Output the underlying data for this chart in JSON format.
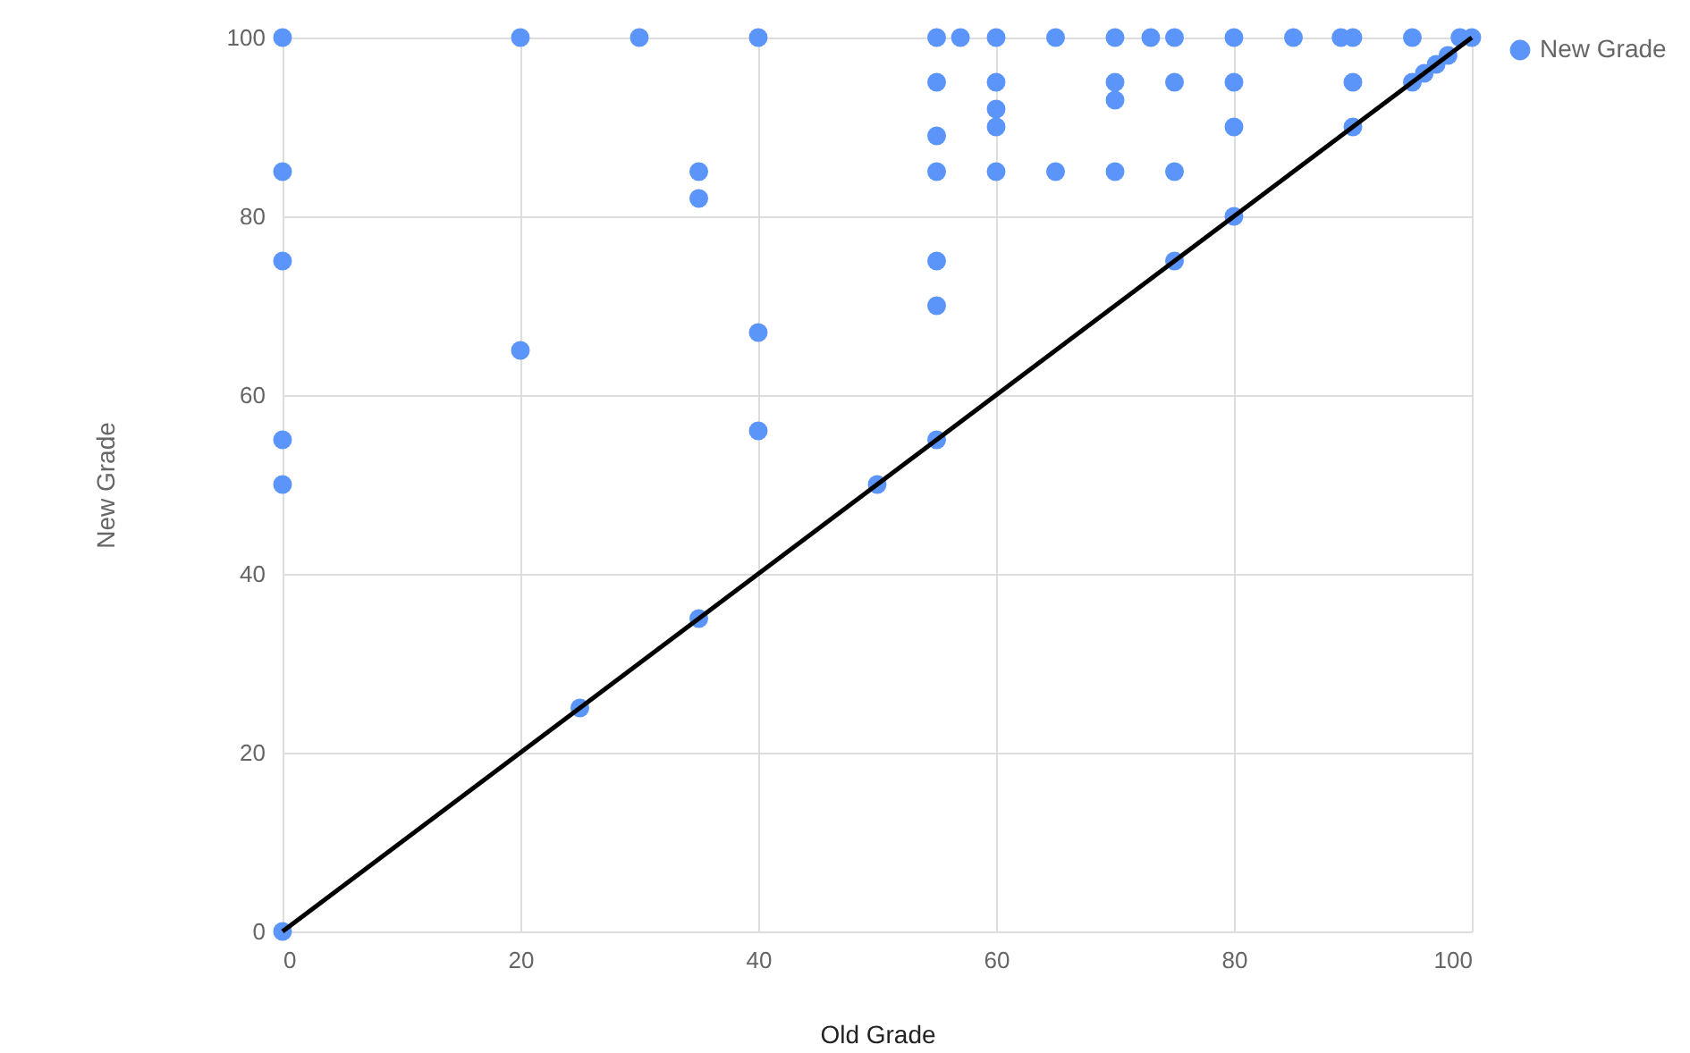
{
  "chart_data": {
    "type": "scatter",
    "xlabel": "Old Grade",
    "ylabel": "New Grade",
    "xlim": [
      0,
      100
    ],
    "ylim": [
      0,
      100
    ],
    "xticks": [
      0,
      20,
      40,
      60,
      80,
      100
    ],
    "yticks": [
      0,
      20,
      40,
      60,
      80,
      100
    ],
    "grid": true,
    "legend": "right",
    "series": [
      {
        "name": "New Grade",
        "color": "#5b95f9",
        "marker": "circle",
        "x": [
          0,
          20,
          30,
          40,
          55,
          57,
          60,
          65,
          70,
          73,
          75,
          80,
          85,
          89,
          90,
          95,
          99,
          100,
          55,
          60,
          70,
          75,
          80,
          90,
          95,
          70,
          60,
          60,
          80,
          90,
          55,
          55,
          60,
          65,
          70,
          75,
          96,
          97,
          98,
          80,
          55,
          75,
          55,
          55,
          0,
          0,
          0,
          0,
          20,
          35,
          35,
          40,
          40,
          35,
          25,
          50,
          0
        ],
        "values": [
          100,
          100,
          100,
          100,
          100,
          100,
          100,
          100,
          100,
          100,
          100,
          100,
          100,
          100,
          100,
          100,
          100,
          100,
          95,
          95,
          95,
          95,
          95,
          95,
          95,
          93,
          92,
          90,
          90,
          90,
          89,
          85,
          85,
          85,
          85,
          85,
          96,
          97,
          98,
          80,
          75,
          75,
          70,
          55,
          85,
          75,
          55,
          50,
          65,
          85,
          82,
          67,
          56,
          35,
          25,
          50,
          0
        ]
      },
      {
        "type": "line",
        "color": "#000000",
        "marker": "none",
        "x": [
          0,
          100
        ],
        "values": [
          0,
          100
        ]
      }
    ]
  }
}
